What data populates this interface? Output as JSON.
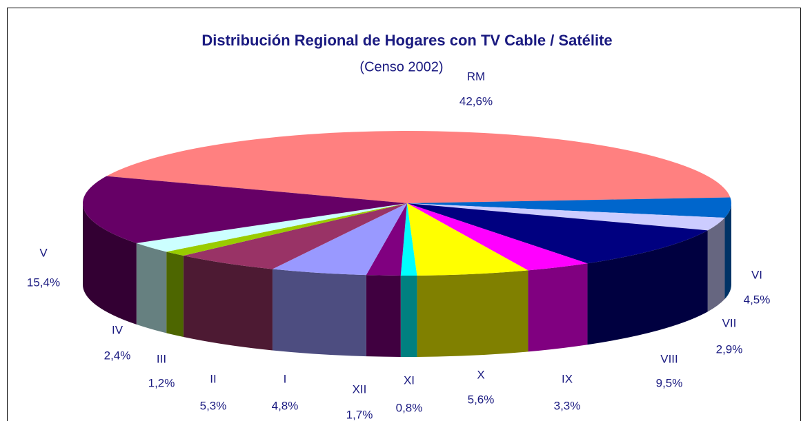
{
  "chart_data": {
    "type": "pie",
    "title": "Distribución Regional de Hogares con TV Cable / Satélite",
    "subtitle": "(Censo 2002)",
    "categories": [
      "RM",
      "VI",
      "VII",
      "VIII",
      "IX",
      "X",
      "XI",
      "XII",
      "I",
      "II",
      "III",
      "IV",
      "V"
    ],
    "values": [
      42.6,
      4.5,
      2.9,
      9.5,
      3.3,
      5.6,
      0.8,
      1.7,
      4.8,
      5.3,
      1.2,
      2.4,
      15.4
    ],
    "value_labels": [
      "42,6%",
      "4,5%",
      "2,9%",
      "9,5%",
      "3,3%",
      "5,6%",
      "0,8%",
      "1,7%",
      "4,8%",
      "5,3%",
      "1,2%",
      "2,4%",
      "15,4%"
    ],
    "colors": [
      "#ff8080",
      "#0066cc",
      "#ccccff",
      "#000080",
      "#ff00ff",
      "#ffff00",
      "#00ffff",
      "#800080",
      "#9999ff",
      "#993366",
      "#99cc00",
      "#ccffff",
      "#660066"
    ]
  }
}
